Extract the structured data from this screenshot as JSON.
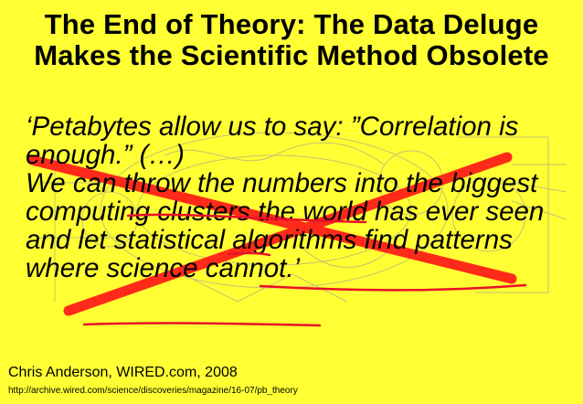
{
  "slide": {
    "title": "The End of Theory: The Data Deluge Makes the Scientific Method Obsolete",
    "quote": "‘Petabytes allow us to say: ”Correlation is enough.” (…)\nWe can throw the numbers into the biggest computing clusters the world has ever seen and let statistical algorithms find patterns where science cannot.’",
    "attribution": "Chris Anderson, WIRED.com, 2008",
    "source_url": "http://archive.wired.com/science/discoveries/magazine/16-07/pb_theory"
  },
  "colors": {
    "background": "#ffff33",
    "cross_mark": "#ff2a1a",
    "underline": "#e8102a"
  }
}
